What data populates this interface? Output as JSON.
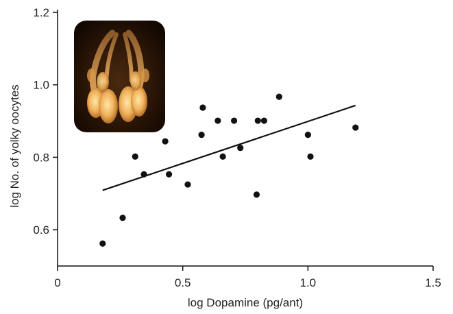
{
  "chart_data": {
    "type": "scatter",
    "title": "",
    "xlabel": "log Dopamine (pg/ant)",
    "ylabel": "log No. of yolky oocytes",
    "xlim": [
      0,
      1.5
    ],
    "ylim": [
      0.5,
      1.2
    ],
    "x_ticks": [
      0,
      0.5,
      1.0,
      1.5
    ],
    "x_tick_labels": [
      "0",
      "0.5",
      "1.0",
      "1.5"
    ],
    "y_ticks": [
      0.6,
      0.8,
      1.0,
      1.2
    ],
    "y_tick_labels": [
      "0.6",
      "0.8",
      "1.0",
      "1.2"
    ],
    "grid": false,
    "points": [
      {
        "x": 0.18,
        "y": 0.562
      },
      {
        "x": 0.26,
        "y": 0.633
      },
      {
        "x": 0.31,
        "y": 0.802
      },
      {
        "x": 0.345,
        "y": 0.753
      },
      {
        "x": 0.43,
        "y": 0.844
      },
      {
        "x": 0.445,
        "y": 0.753
      },
      {
        "x": 0.52,
        "y": 0.725
      },
      {
        "x": 0.575,
        "y": 0.862
      },
      {
        "x": 0.58,
        "y": 0.937
      },
      {
        "x": 0.64,
        "y": 0.901
      },
      {
        "x": 0.66,
        "y": 0.802
      },
      {
        "x": 0.705,
        "y": 0.901
      },
      {
        "x": 0.73,
        "y": 0.826
      },
      {
        "x": 0.795,
        "y": 0.697
      },
      {
        "x": 0.8,
        "y": 0.901
      },
      {
        "x": 0.825,
        "y": 0.901
      },
      {
        "x": 0.885,
        "y": 0.967
      },
      {
        "x": 1.0,
        "y": 0.862
      },
      {
        "x": 1.01,
        "y": 0.802
      },
      {
        "x": 1.19,
        "y": 0.882
      }
    ],
    "trendline": {
      "x": [
        0.18,
        1.19
      ],
      "y": [
        0.709,
        0.943
      ]
    },
    "colors": {
      "points": "#111111",
      "line": "#111111",
      "axes": "#111111"
    }
  },
  "inset": {
    "icon": "ovary-photo-icon"
  }
}
